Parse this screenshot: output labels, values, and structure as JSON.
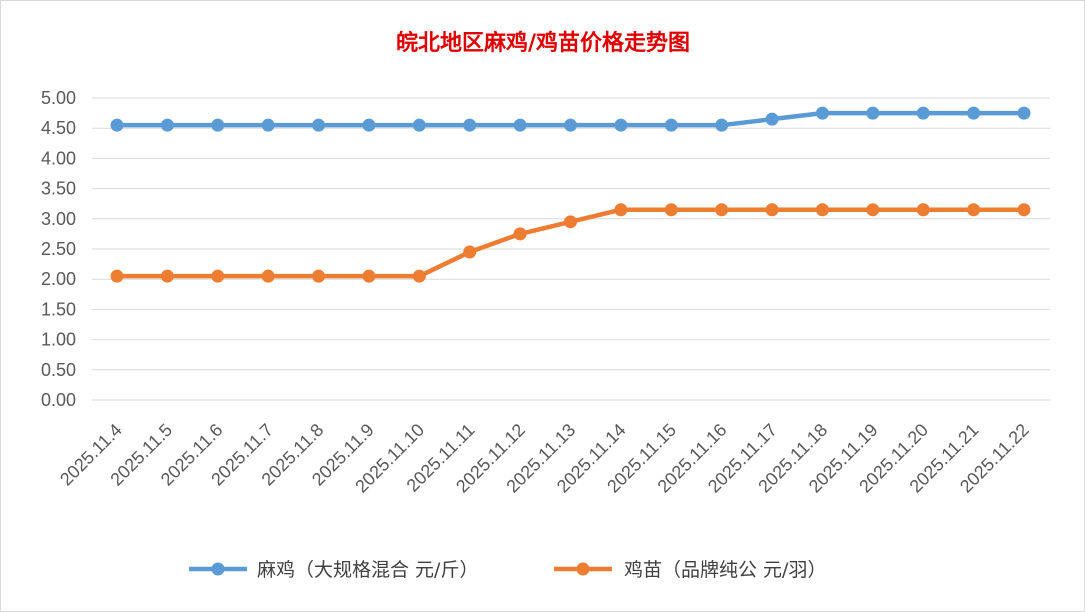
{
  "chart_data": {
    "type": "line",
    "title": "皖北地区麻鸡/鸡苗价格走势图",
    "categories": [
      "2025.11.4",
      "2025.11.5",
      "2025.11.6",
      "2025.11.7",
      "2025.11.8",
      "2025.11.9",
      "2025.11.10",
      "2025.11.11",
      "2025.11.12",
      "2025.11.13",
      "2025.11.14",
      "2025.11.15",
      "2025.11.16",
      "2025.11.17",
      "2025.11.18",
      "2025.11.19",
      "2025.11.20",
      "2025.11.21",
      "2025.11.22"
    ],
    "y_ticks": [
      "0.00",
      "0.50",
      "1.00",
      "1.50",
      "2.00",
      "2.50",
      "3.00",
      "3.50",
      "4.00",
      "4.50",
      "5.00"
    ],
    "ylim": [
      0,
      5
    ],
    "grid": true,
    "legend_position": "bottom",
    "series": [
      {
        "name": "麻鸡（大规格混合 元/斤）",
        "color": "#5b9bd5",
        "values": [
          4.55,
          4.55,
          4.55,
          4.55,
          4.55,
          4.55,
          4.55,
          4.55,
          4.55,
          4.55,
          4.55,
          4.55,
          4.55,
          4.65,
          4.75,
          4.75,
          4.75,
          4.75,
          4.75
        ]
      },
      {
        "name": "鸡苗（品牌纯公 元/羽）",
        "color": "#ed7d31",
        "values": [
          2.05,
          2.05,
          2.05,
          2.05,
          2.05,
          2.05,
          2.05,
          2.45,
          2.75,
          2.95,
          3.15,
          3.15,
          3.15,
          3.15,
          3.15,
          3.15,
          3.15,
          3.15,
          3.15
        ]
      }
    ]
  }
}
